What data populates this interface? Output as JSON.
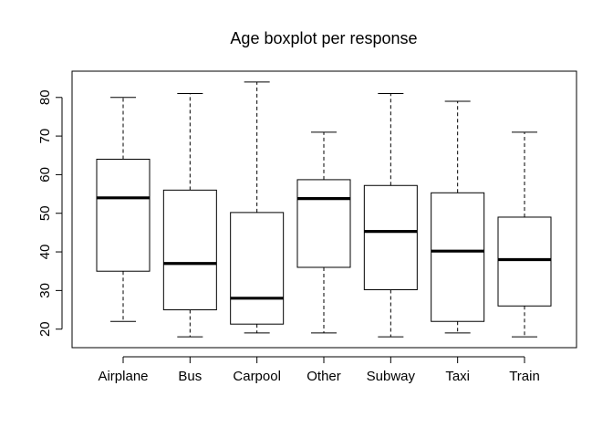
{
  "chart_data": {
    "type": "boxplot",
    "title": "Age boxplot per response",
    "xlabel": "",
    "ylabel": "",
    "categories": [
      "Airplane",
      "Bus",
      "Carpool",
      "Other",
      "Subway",
      "Taxi",
      "Train"
    ],
    "boxes": [
      {
        "category": "Airplane",
        "min": 22,
        "q1": 35,
        "median": 54,
        "q3": 64,
        "max": 80
      },
      {
        "category": "Bus",
        "min": 18,
        "q1": 25,
        "median": 37,
        "q3": 56,
        "max": 81
      },
      {
        "category": "Carpool",
        "min": 19,
        "q1": 21.3,
        "median": 28,
        "q3": 50.2,
        "max": 84
      },
      {
        "category": "Other",
        "min": 19,
        "q1": 36,
        "median": 53.8,
        "q3": 58.7,
        "max": 71
      },
      {
        "category": "Subway",
        "min": 18,
        "q1": 30.2,
        "median": 45.3,
        "q3": 57.2,
        "max": 81
      },
      {
        "category": "Taxi",
        "min": 19,
        "q1": 22,
        "median": 40.2,
        "q3": 55.3,
        "max": 79
      },
      {
        "category": "Train",
        "min": 18,
        "q1": 26,
        "median": 38,
        "q3": 49,
        "max": 71
      }
    ],
    "yticks": [
      20,
      30,
      40,
      50,
      60,
      70,
      80
    ],
    "ylim": [
      15.2,
      86.8
    ],
    "grid": false
  }
}
